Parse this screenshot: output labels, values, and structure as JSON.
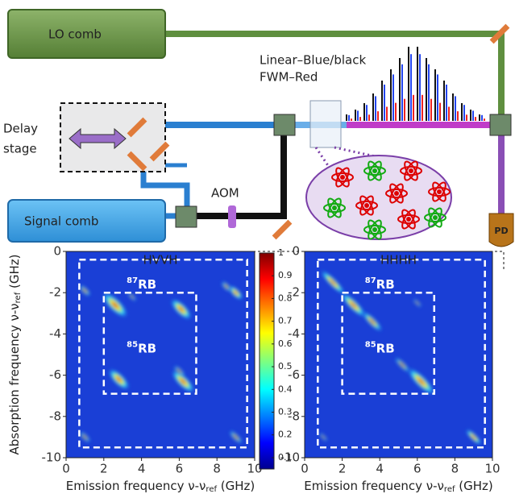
{
  "diagram": {
    "lo_comb": "LO comb",
    "legend_line1": "Linear–Blue/black",
    "legend_line2": "FWM–Red",
    "delay_line1": "Delay",
    "delay_line2": "stage",
    "aom": "AOM",
    "signal_comb": "Signal comb",
    "pd": "PD"
  },
  "chart_data": [
    {
      "type": "heatmap",
      "title": "HVVH",
      "xlim": [
        0,
        10
      ],
      "ylim": [
        -10,
        0
      ],
      "xticks": [
        0,
        2,
        4,
        6,
        8,
        10
      ],
      "yticks": [
        0,
        -2,
        -4,
        -6,
        -8,
        -10
      ],
      "xlabel": {
        "main": "Emission frequency ν-ν",
        "sub": "ref",
        "unit": " (GHz)"
      },
      "ylabel": {
        "main": "Absorption frequency ν-ν",
        "sub": "ref",
        "unit": " (GHz)"
      },
      "regions": [
        {
          "sup": "87",
          "text": "RB"
        },
        {
          "sup": "85",
          "text": "RB"
        }
      ]
    },
    {
      "type": "heatmap",
      "title": "HHHH",
      "xlim": [
        0,
        10
      ],
      "ylim": [
        -10,
        0
      ],
      "xticks": [
        0,
        2,
        4,
        6,
        8,
        10
      ],
      "yticks": [
        0,
        -2,
        -4,
        -6,
        -8,
        -10
      ],
      "xlabel": {
        "main": "Emission frequency ν-ν",
        "sub": "ref",
        "unit": " (GHz)"
      },
      "regions": [
        {
          "sup": "87",
          "text": "RB"
        },
        {
          "sup": "85",
          "text": "RB"
        }
      ]
    },
    {
      "type": "colorbar",
      "ylim": [
        0.05,
        1
      ],
      "yticks": [
        0.1,
        0.2,
        0.3,
        0.4,
        0.5,
        0.6,
        0.7,
        0.8,
        0.9,
        1
      ]
    }
  ]
}
